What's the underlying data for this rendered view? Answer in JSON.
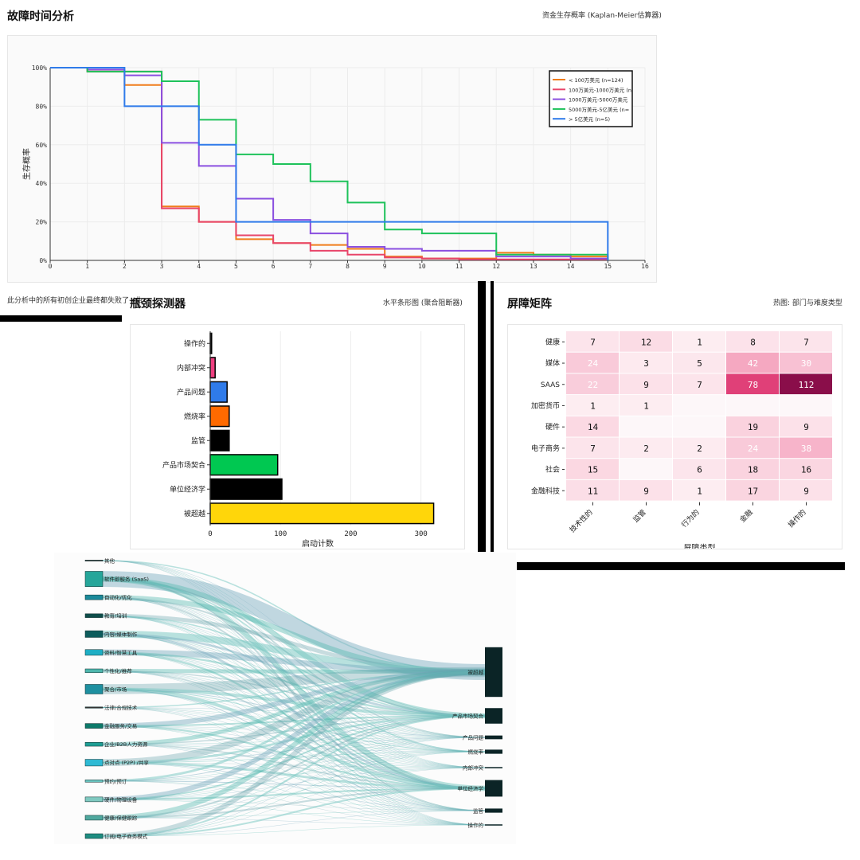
{
  "km": {
    "title": "故障时间分析",
    "subtitle": "资金生存概率 (Kaplan-Meier估算器)",
    "footnote": "此分析中的所有初创企业最终都失败了→曲",
    "ylabel": "生存概率",
    "xlabel": "",
    "chart_data": {
      "type": "line",
      "step": true,
      "xlim": [
        0,
        16
      ],
      "ylim": [
        0,
        1
      ],
      "yticks": [
        "0%",
        "20%",
        "40%",
        "60%",
        "80%",
        "100%"
      ],
      "xticks": [
        "0",
        "1",
        "2",
        "3",
        "4",
        "5",
        "6",
        "7",
        "8",
        "9",
        "10",
        "11",
        "12",
        "13",
        "14",
        "15",
        "16"
      ],
      "legend_position": "top-right",
      "series": [
        {
          "name": "< 100万美元 (n=124)",
          "color": "#f07c1a",
          "x": [
            0,
            1,
            2,
            3,
            4,
            5,
            6,
            7,
            8,
            9,
            10,
            11,
            12,
            13,
            14,
            15
          ],
          "y": [
            1.0,
            0.98,
            0.91,
            0.28,
            0.2,
            0.11,
            0.09,
            0.08,
            0.06,
            0.02,
            0.01,
            0.01,
            0.04,
            0.03,
            0.02,
            0.0
          ]
        },
        {
          "name": "100万美元-1000万美元 (n",
          "color": "#e8456a",
          "x": [
            0,
            1,
            2,
            3,
            4,
            5,
            6,
            7,
            8,
            9,
            10,
            11,
            12,
            13,
            14,
            15
          ],
          "y": [
            1.0,
            0.98,
            0.98,
            0.27,
            0.2,
            0.13,
            0.09,
            0.05,
            0.03,
            0.015,
            0.01,
            0.005,
            0.005,
            0.005,
            0.005,
            0.0
          ]
        },
        {
          "name": "1000万美元-5000万美元",
          "color": "#8a4fe0",
          "x": [
            0,
            1,
            2,
            3,
            4,
            5,
            6,
            7,
            8,
            9,
            10,
            11,
            12,
            13,
            14,
            15
          ],
          "y": [
            1.0,
            0.99,
            0.96,
            0.61,
            0.49,
            0.32,
            0.21,
            0.14,
            0.07,
            0.06,
            0.05,
            0.05,
            0.02,
            0.02,
            0.01,
            0.0
          ]
        },
        {
          "name": "5000万美元-5亿美元 (n=",
          "color": "#1ec25a",
          "x": [
            0,
            1,
            2,
            3,
            4,
            5,
            6,
            7,
            8,
            9,
            10,
            11,
            12,
            13,
            14,
            15
          ],
          "y": [
            1.0,
            0.98,
            0.98,
            0.93,
            0.73,
            0.55,
            0.5,
            0.41,
            0.3,
            0.16,
            0.14,
            0.14,
            0.03,
            0.03,
            0.03,
            0.0
          ]
        },
        {
          "name": "> 5亿美元 (n=5)",
          "color": "#2f7bea",
          "x": [
            0,
            1,
            2,
            3,
            4,
            5,
            6,
            7,
            8,
            9,
            10,
            11,
            12,
            13,
            14,
            15
          ],
          "y": [
            1.0,
            1.0,
            0.8,
            0.8,
            0.6,
            0.2,
            0.2,
            0.2,
            0.2,
            0.2,
            0.2,
            0.2,
            0.2,
            0.2,
            0.2,
            0.0
          ]
        }
      ]
    }
  },
  "bottleneck": {
    "title": "瓶颈探测器",
    "subtitle": "水平条形图 (聚合阻断器)",
    "chart_data": {
      "type": "bar",
      "orientation": "horizontal",
      "categories": [
        "操作的",
        "内部冲突",
        "产品问题",
        "燃烧率",
        "监管",
        "产品市场契合",
        "单位经济学",
        "被超越"
      ],
      "values": [
        2,
        7,
        24,
        27,
        27,
        96,
        102,
        318
      ],
      "colors": [
        "#111111",
        "#ee3f80",
        "#2f7bea",
        "#ff6a00",
        "#000000",
        "#00c851",
        "#000000",
        "#ffd60a"
      ],
      "xlim": [
        0,
        340
      ],
      "xticks": [
        "0",
        "100",
        "200",
        "300"
      ],
      "xlabel": "启动计数"
    }
  },
  "heatmap": {
    "title": "屏障矩阵",
    "subtitle": "热图: 部门与难度类型",
    "chart_data": {
      "type": "heatmap",
      "rows": [
        "健康",
        "媒体",
        "SAAS",
        "加密货币",
        "硬件",
        "电子商务",
        "社会",
        "金融科技"
      ],
      "cols": [
        "技术性的",
        "监管",
        "行为的",
        "金融",
        "操作的"
      ],
      "values": [
        [
          7,
          12,
          1,
          8,
          7
        ],
        [
          24,
          3,
          5,
          42,
          30
        ],
        [
          22,
          9,
          7,
          78,
          112
        ],
        [
          1,
          1,
          null,
          null,
          null
        ],
        [
          14,
          null,
          null,
          19,
          9
        ],
        [
          7,
          2,
          2,
          24,
          38
        ],
        [
          15,
          null,
          6,
          18,
          16
        ],
        [
          11,
          9,
          1,
          17,
          9
        ]
      ],
      "xlabel": "屏障类型",
      "colorscale": [
        "#fdeef2",
        "#f7b6cb",
        "#e8457c",
        "#8a0e4a"
      ]
    }
  },
  "sankey": {
    "chart_data": {
      "type": "sankey",
      "sources": [
        {
          "label": "其他",
          "weight": 0.3
        },
        {
          "label": "软件即服务 (SaaS)",
          "weight": 8
        },
        {
          "label": "自动化/优化",
          "weight": 2.5
        },
        {
          "label": "教育/培训",
          "weight": 2
        },
        {
          "label": "内容/媒体制作",
          "weight": 3.5
        },
        {
          "label": "资料/智慧工具",
          "weight": 3
        },
        {
          "label": "个性化/推荐",
          "weight": 2
        },
        {
          "label": "聚合/市场",
          "weight": 5
        },
        {
          "label": "法律/合规技术",
          "weight": 0.6
        },
        {
          "label": "金融服务/交易",
          "weight": 2.5
        },
        {
          "label": "企业/B2B人力资源",
          "weight": 2
        },
        {
          "label": "点对点 (P2P) /共享",
          "weight": 3.5
        },
        {
          "label": "预约/预订",
          "weight": 1.2
        },
        {
          "label": "硬件/物理设备",
          "weight": 2.5
        },
        {
          "label": "健康/保健跟踪",
          "weight": 2.5
        },
        {
          "label": "订阅/电子商务模式",
          "weight": 2.5
        }
      ],
      "targets": [
        {
          "label": "被超越",
          "weight": 24
        },
        {
          "label": "产品市场契合",
          "weight": 7.5
        },
        {
          "label": "产品问题",
          "weight": 1.8
        },
        {
          "label": "燃烧率",
          "weight": 2
        },
        {
          "label": "内部冲突",
          "weight": 0.5
        },
        {
          "label": "单位经济学",
          "weight": 8
        },
        {
          "label": "监管",
          "weight": 2
        },
        {
          "label": "操作的",
          "weight": 0.4
        }
      ]
    }
  }
}
